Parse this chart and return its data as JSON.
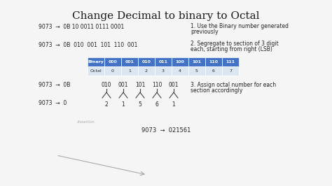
{
  "title": "Change Decimal to binary to Octal",
  "bg_color": "#f5f5f5",
  "title_fontsize": 11,
  "title_color": "#1a1a1a",
  "line1": "9073  →  0B 10 0011 0111 0001",
  "note1_line1": "1. Use the Binary number generated",
  "note1_line2": "previously",
  "line2": "9073  →  0B  010  001  101  110  001",
  "note2_line1": "2. Segregate to section of 3 digit",
  "note2_line2": "each, starting from right (LSB)",
  "table_header": [
    "Binary",
    "000",
    "001",
    "010",
    "011",
    "100",
    "101",
    "110",
    "111"
  ],
  "table_row": [
    "Octal",
    "0",
    "1",
    "2",
    "3",
    "4",
    "5",
    "6",
    "7"
  ],
  "header_bg": "#4472c4",
  "header_fg": "#ffffff",
  "row_bg": "#dce6f1",
  "row_fg": "#222222",
  "line3_prefix": "9073  →  0B",
  "line3_groups": [
    "010",
    "001",
    "101",
    "110",
    "001"
  ],
  "line4": "9073  →  0",
  "octal_digits": [
    "2",
    "1",
    "5",
    "6",
    "1"
  ],
  "note3_line1": "3. Assign octal number for each",
  "note3_line2": "section accordingly",
  "final_line": "9073  →  021561",
  "text_color": "#222222"
}
